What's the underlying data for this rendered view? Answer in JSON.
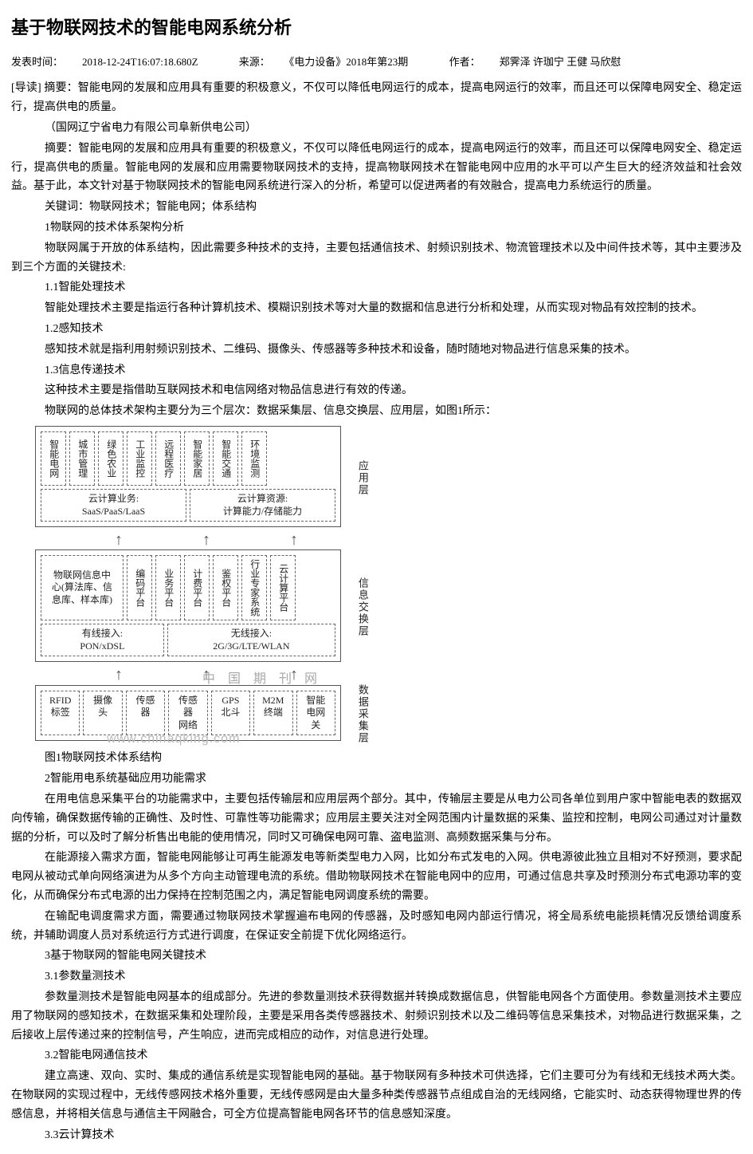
{
  "title": "基于物联网技术的智能电网系统分析",
  "meta": {
    "publish_label": "发表时间：",
    "publish_time": "2018-12-24T16:07:18.680Z",
    "source_label": "来源：",
    "source": "《电力设备》2018年第23期",
    "author_label": "作者：",
    "authors": "郑霁泽 许珈宁 王健 马欣慰"
  },
  "lead": "[导读] 摘要：智能电网的发展和应用具有重要的积极意义，不仅可以降低电网运行的成本，提高电网运行的效率，而且还可以保障电网安全、稳定运行，提高供电的质量。",
  "affiliation": "（国网辽宁省电力有限公司阜新供电公司）",
  "abstract": "摘要：智能电网的发展和应用具有重要的积极意义，不仅可以降低电网运行的成本，提高电网运行的效率，而且还可以保障电网安全、稳定运行，提高供电的质量。智能电网的发展和应用需要物联网技术的支持，提高物联网技术在智能电网中应用的水平可以产生巨大的经济效益和社会效益。基于此，本文针对基于物联网技术的智能电网系统进行深入的分析，希望可以促进两者的有效融合，提高电力系统运行的质量。",
  "keywords": "关键词：物联网技术；智能电网；体系结构",
  "s1": {
    "h": "1物联网的技术体系架构分析",
    "p1": "物联网属于开放的体系结构，因此需要多种技术的支持，主要包括通信技术、射频识别技术、物流管理技术以及中间件技术等，其中主要涉及到三个方面的关键技术:",
    "h11": "1.1智能处理技术",
    "p11": "智能处理技术主要是指运行各种计算机技术、模糊识别技术等对大量的数据和信息进行分析和处理，从而实现对物品有效控制的技术。",
    "h12": "1.2感知技术",
    "p12": "感知技术就是指利用射频识别技术、二维码、摄像头、传感器等多种技术和设备，随时随地对物品进行信息采集的技术。",
    "h13": "1.3信息传递技术",
    "p13": "这种技术主要是指借助互联网技术和电信网络对物品信息进行有效的传递。",
    "p14": "物联网的总体技术架构主要分为三个层次：数据采集层、信息交换层、应用层，如图1所示："
  },
  "diagram": {
    "caption": "图1物联网技术体系结构",
    "layer_app": {
      "label": "应用层",
      "row1": [
        "智能电网",
        "城市管理",
        "绿色农业",
        "工业监控",
        "远程医疗",
        "智能家居",
        "智能交通",
        "环境监测"
      ],
      "row2_left": "云计算业务:\nSaaS/PaaS/LaaS",
      "row2_right": "云计算资源:\n计算能力/存储能力"
    },
    "layer_mid": {
      "label": "信息交换层",
      "row1_left": "物联网信息中\n心(算法库、信\n息库、样本库)",
      "row1": [
        "编码平台",
        "业务平台",
        "计费平台",
        "鉴权平台",
        "行业专家系统",
        "云计算平台"
      ],
      "row2_left": "有线接入:\nPON/xDSL",
      "row2_right": "无线接入:\n2G/3G/LTE/WLAN"
    },
    "layer_data": {
      "label": "数据采集层",
      "row1": [
        "RFID\n标签",
        "摄像头",
        "传感器",
        "传感器\n网络",
        "GPS\n北斗",
        "M2M\n终端",
        "智能\n电网关"
      ]
    },
    "watermark1": "中 国 期 刊 网",
    "watermark2": "www.chinaqking.com"
  },
  "s2": {
    "h": "2智能用电系统基础应用功能需求",
    "p1": "在用电信息采集平台的功能需求中，主要包括传输层和应用层两个部分。其中，传输层主要是从电力公司各单位到用户家中智能电表的数据双向传输，确保数据传输的正确性、及时性、可靠性等功能需求；应用层主要关注对全网范围内计量数据的采集、监控和控制，电网公司通过对计量数据的分析，可以及时了解分析售出电能的使用情况，同时又可确保电网可靠、盗电监测、高频数据采集与分布。",
    "p2": "在能源接入需求方面，智能电网能够让可再生能源发电等新类型电力入网，比如分布式发电的入网。供电源彼此独立且相对不好预测，要求配电网从被动式单向网络演进为从多个方向主动管理电流的系统。借助物联网技术在智能电网中的应用，可通过信息共享及时预测分布式电源功率的变化，从而确保分布式电源的出力保持在控制范围之内，满足智能电网调度系统的需要。",
    "p3": "在输配电调度需求方面，需要通过物联网技术掌握遍布电网的传感器，及时感知电网内部运行情况，将全局系统电能损耗情况反馈给调度系统，并辅助调度人员对系统运行方式进行调度，在保证安全前提下优化网络运行。"
  },
  "s3": {
    "h": "3基于物联网的智能电网关键技术",
    "h31": "3.1参数量测技术",
    "p31": "参数量测技术是智能电网基本的组成部分。先进的参数量测技术获得数据并转换成数据信息，供智能电网各个方面使用。参数量测技术主要应用了物联网的感知技术，在数据采集和处理阶段，主要是采用各类传感器技术、射频识别技术以及二维码等信息采集技术，对物品进行数据采集，之后接收上层传递过来的控制信号，产生响应，进而完成相应的动作，对信息进行处理。",
    "h32": "3.2智能电网通信技术",
    "p32": "建立高速、双向、实时、集成的通信系统是实现智能电网的基础。基于物联网有多种技术可供选择，它们主要可分为有线和无线技术两大类。在物联网的实现过程中，无线传感网技术格外重要，无线传感网是由大量多种类传感器节点组成自治的无线网络，它能实时、动态获得物理世界的传感信息，并将相关信息与通信主干网融合，可全方位提高智能电网各环节的信息感知深度。",
    "h33": "3.3云计算技术"
  }
}
